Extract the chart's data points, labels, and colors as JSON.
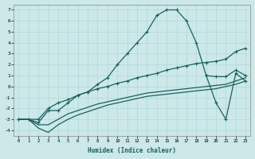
{
  "xlabel": "Humidex (Indice chaleur)",
  "xlim": [
    -0.5,
    23.5
  ],
  "ylim": [
    -4.5,
    7.5
  ],
  "yticks": [
    -4,
    -3,
    -2,
    -1,
    0,
    1,
    2,
    3,
    4,
    5,
    6,
    7
  ],
  "xticks": [
    0,
    1,
    2,
    3,
    4,
    5,
    6,
    7,
    8,
    9,
    10,
    11,
    12,
    13,
    14,
    15,
    16,
    17,
    18,
    19,
    20,
    21,
    22,
    23
  ],
  "bg_color": "#cce8e8",
  "line_color": "#1a6060",
  "grid_color": "#b0d8d8",
  "line1_x": [
    0,
    1,
    2,
    3,
    4,
    5,
    6,
    7,
    8,
    9,
    10,
    11,
    12,
    13,
    14,
    15,
    16,
    17,
    18,
    19,
    20,
    21,
    22,
    23
  ],
  "line1_y": [
    -3.0,
    -3.0,
    -3.3,
    -2.2,
    -2.2,
    -1.5,
    -0.8,
    -0.5,
    0.2,
    0.8,
    2.0,
    3.0,
    4.0,
    5.0,
    6.5,
    7.0,
    7.0,
    6.0,
    4.0,
    1.0,
    0.9,
    0.9,
    1.5,
    1.0
  ],
  "line2_x": [
    0,
    1,
    2,
    3,
    4,
    5,
    6,
    7,
    8,
    9,
    10,
    11,
    12,
    13,
    14,
    15,
    16,
    17,
    18,
    19,
    20,
    21,
    22,
    23
  ],
  "line2_y": [
    -3.0,
    -3.0,
    -3.0,
    -2.0,
    -1.5,
    -1.2,
    -0.8,
    -0.5,
    -0.2,
    0.0,
    0.3,
    0.5,
    0.8,
    1.0,
    1.2,
    1.5,
    1.7,
    1.9,
    2.1,
    2.2,
    2.3,
    2.5,
    3.2,
    3.5
  ],
  "line3_x": [
    0,
    1,
    2,
    3,
    4,
    5,
    6,
    7,
    8,
    9,
    10,
    11,
    12,
    13,
    14,
    15,
    16,
    17,
    18,
    19,
    20,
    21,
    22,
    23
  ],
  "line3_y": [
    -3.0,
    -3.0,
    -3.5,
    -3.5,
    -3.0,
    -2.5,
    -2.2,
    -1.9,
    -1.6,
    -1.4,
    -1.2,
    -1.0,
    -0.8,
    -0.6,
    -0.5,
    -0.4,
    -0.3,
    -0.2,
    -0.1,
    0.0,
    0.1,
    0.2,
    0.5,
    0.8
  ],
  "line4_x": [
    0,
    1,
    2,
    3,
    4,
    5,
    6,
    7,
    8,
    9,
    10,
    11,
    12,
    13,
    14,
    15,
    16,
    17,
    18,
    19,
    20,
    21,
    22,
    23
  ],
  "line4_y": [
    -3.0,
    -3.0,
    -3.8,
    -4.2,
    -3.5,
    -3.0,
    -2.6,
    -2.3,
    -2.0,
    -1.7,
    -1.5,
    -1.3,
    -1.1,
    -0.9,
    -0.8,
    -0.7,
    -0.6,
    -0.5,
    -0.4,
    -0.3,
    -0.2,
    0.0,
    0.2,
    0.5
  ],
  "zigzag_x": [
    19,
    20,
    21,
    22,
    23
  ],
  "zigzag_y": [
    1.0,
    -1.5,
    -3.0,
    1.2,
    0.5
  ],
  "marker": "+"
}
